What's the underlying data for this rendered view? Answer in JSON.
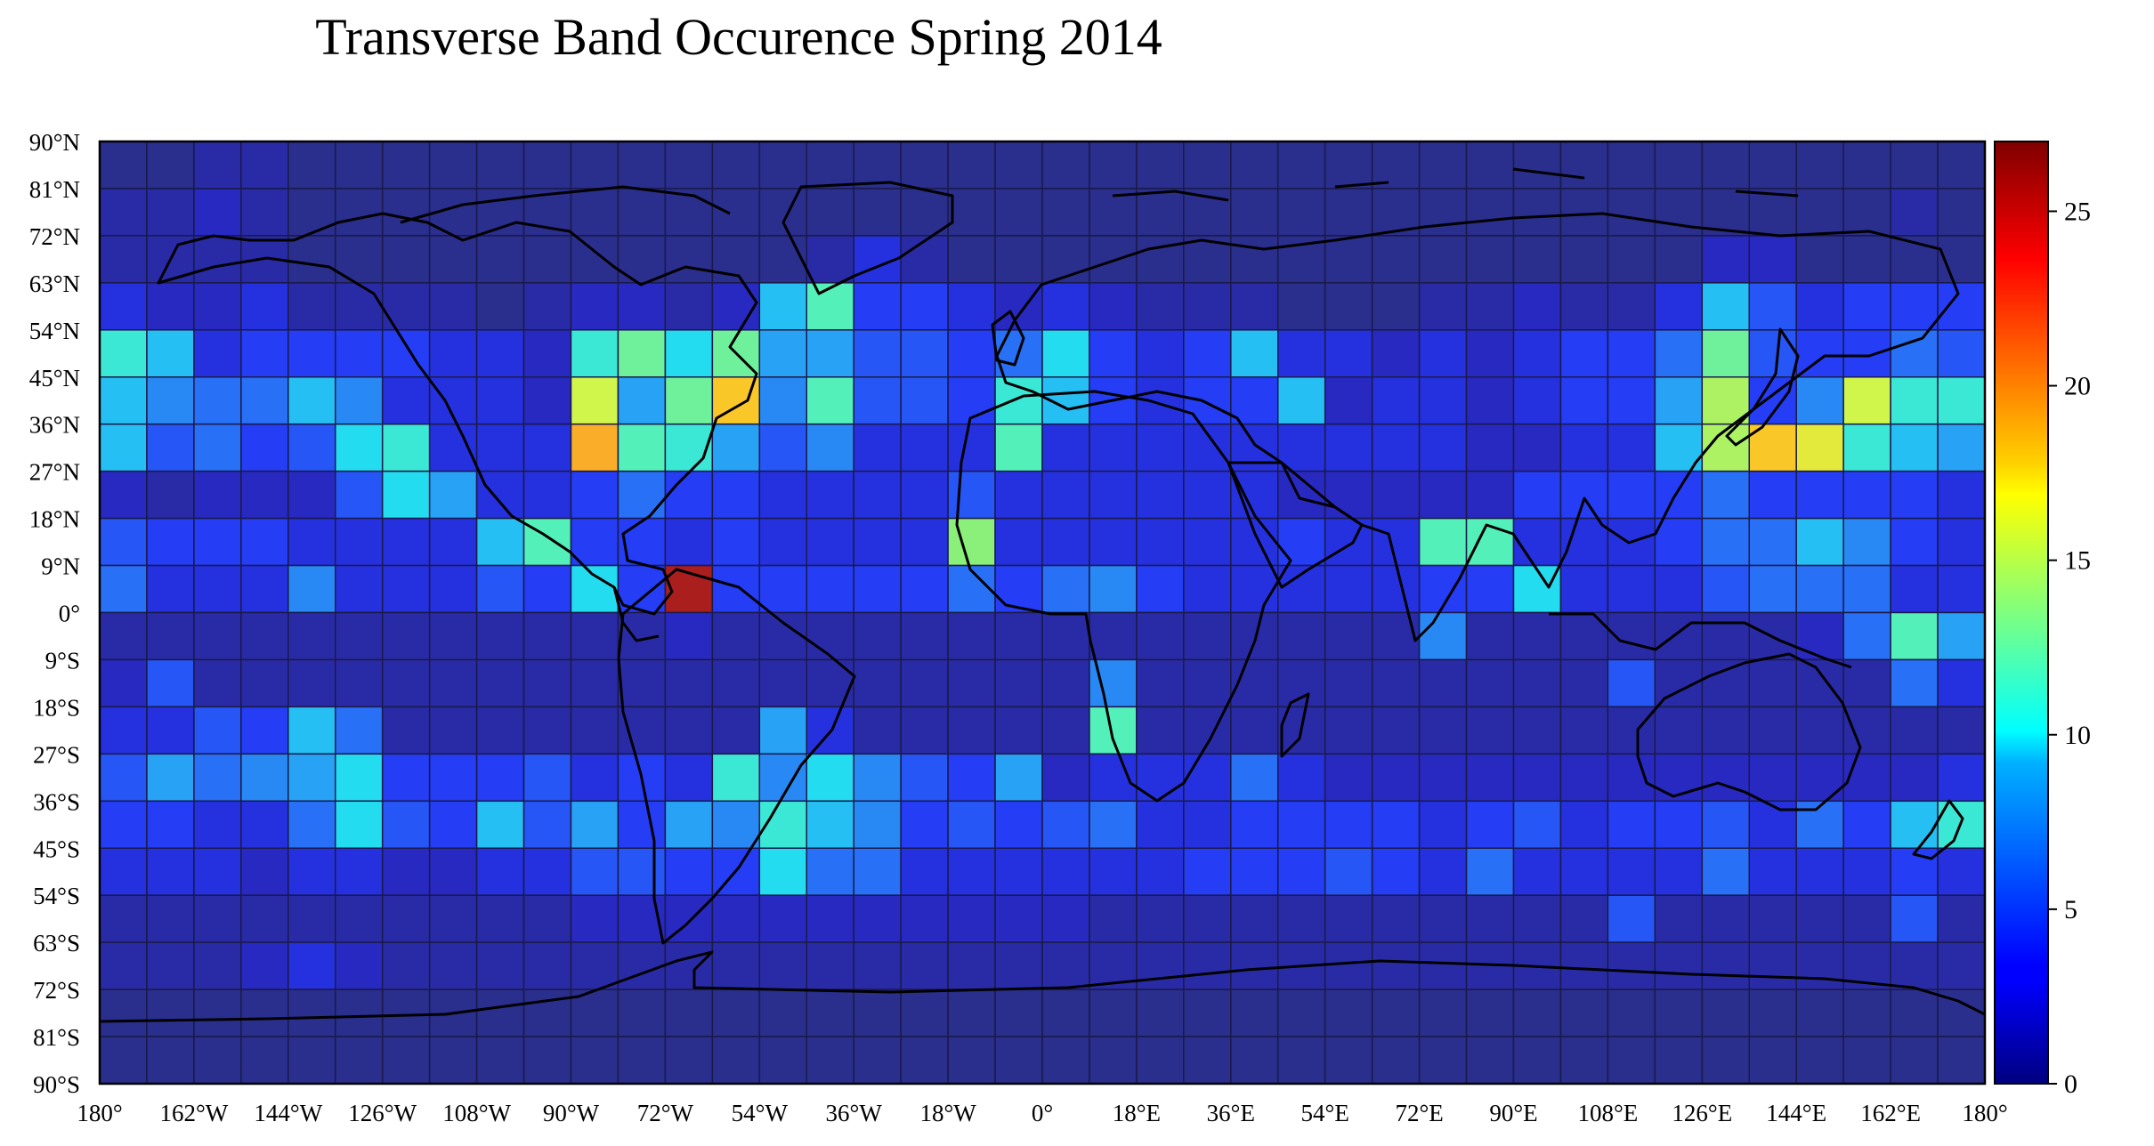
{
  "chart_data": {
    "type": "heatmap",
    "title": "Transverse Band Occurence Spring 2014",
    "xlabel": "",
    "ylabel": "",
    "projection": "equirectangular world map with coastlines",
    "x_range": [
      -180,
      180
    ],
    "y_range": [
      -90,
      90
    ],
    "grid": true,
    "colormap": "jet",
    "colorbar": {
      "range": [
        0,
        27
      ],
      "ticks": [
        "0",
        "5",
        "10",
        "15",
        "20",
        "25"
      ],
      "placement": "right"
    },
    "x_tick_labels": [
      "180°",
      "162°W",
      "144°W",
      "126°W",
      "108°W",
      "90°W",
      "72°W",
      "54°W",
      "36°W",
      "18°W",
      "0°",
      "18°E",
      "36°E",
      "54°E",
      "72°E",
      "90°E",
      "108°E",
      "126°E",
      "144°E",
      "162°E",
      "180°"
    ],
    "y_tick_labels": [
      "90°N",
      "81°N",
      "72°N",
      "63°N",
      "54°N",
      "45°N",
      "36°N",
      "27°N",
      "18°N",
      "9°N",
      "0°",
      "9°S",
      "18°S",
      "27°S",
      "36°S",
      "45°S",
      "54°S",
      "63°S",
      "72°S",
      "81°S",
      "90°S"
    ],
    "x_bin_edges": [
      -180,
      -171,
      -162,
      -153,
      -144,
      -135,
      -126,
      -117,
      -108,
      -99,
      -90,
      -81,
      -72,
      -63,
      -54,
      -45,
      -36,
      -27,
      -18,
      -9,
      0,
      9,
      18,
      27,
      36,
      45,
      54,
      63,
      72,
      81,
      90,
      99,
      108,
      117,
      126,
      135,
      144,
      153,
      162,
      171,
      180
    ],
    "y_bin_edges": [
      90,
      81,
      72,
      63,
      54,
      45,
      36,
      27,
      18,
      9,
      0,
      -9,
      -18,
      -27,
      -36,
      -45,
      -54,
      -63,
      -72,
      -81,
      -90
    ],
    "values": [
      [
        0,
        0,
        1,
        1,
        0,
        0,
        0,
        0,
        0,
        0,
        0,
        0,
        0,
        0,
        0,
        0,
        0,
        0,
        0,
        0,
        0,
        0,
        0,
        0,
        0,
        0,
        0,
        0,
        0,
        0,
        0,
        0,
        0,
        0,
        0,
        0,
        0,
        0,
        0,
        0
      ],
      [
        1,
        1,
        2,
        1,
        0,
        0,
        0,
        0,
        0,
        0,
        0,
        0,
        0,
        0,
        0,
        0,
        0,
        0,
        0,
        0,
        0,
        0,
        0,
        0,
        0,
        0,
        0,
        0,
        0,
        0,
        0,
        0,
        0,
        0,
        0,
        0,
        0,
        0,
        1,
        0
      ],
      [
        1,
        1,
        1,
        1,
        0,
        0,
        0,
        0,
        0,
        0,
        0,
        0,
        0,
        0,
        0,
        1,
        3,
        1,
        0,
        0,
        0,
        0,
        0,
        0,
        0,
        0,
        0,
        0,
        0,
        0,
        0,
        0,
        0,
        0,
        2,
        2,
        0,
        0,
        0,
        0
      ],
      [
        3,
        2,
        2,
        3,
        1,
        1,
        1,
        1,
        0,
        1,
        2,
        2,
        1,
        2,
        9,
        12,
        4,
        4,
        3,
        2,
        3,
        2,
        1,
        1,
        1,
        0,
        0,
        0,
        1,
        1,
        2,
        1,
        1,
        3,
        9,
        5,
        3,
        4,
        4,
        4
      ],
      [
        11,
        9,
        3,
        4,
        4,
        4,
        4,
        3,
        3,
        2,
        11,
        13,
        10,
        13,
        8,
        8,
        5,
        5,
        4,
        6,
        10,
        4,
        3,
        4,
        9,
        3,
        3,
        2,
        3,
        2,
        3,
        4,
        4,
        6,
        13,
        5,
        4,
        4,
        6,
        5
      ],
      [
        9,
        7,
        6,
        6,
        9,
        7,
        3,
        3,
        3,
        2,
        16,
        8,
        13,
        19,
        7,
        12,
        5,
        5,
        4,
        11,
        9,
        4,
        3,
        4,
        4,
        9,
        2,
        3,
        3,
        2,
        3,
        4,
        4,
        8,
        15,
        4,
        7,
        16,
        11,
        11
      ],
      [
        9,
        5,
        6,
        4,
        5,
        10,
        11,
        3,
        3,
        3,
        20,
        12,
        11,
        8,
        5,
        7,
        3,
        3,
        3,
        12,
        3,
        3,
        3,
        3,
        3,
        3,
        3,
        3,
        3,
        2,
        2,
        3,
        3,
        9,
        15,
        19,
        17,
        11,
        9,
        8
      ],
      [
        2,
        1,
        2,
        2,
        2,
        5,
        10,
        8,
        3,
        3,
        4,
        6,
        4,
        4,
        3,
        3,
        3,
        3,
        5,
        3,
        3,
        3,
        3,
        3,
        3,
        2,
        2,
        2,
        2,
        2,
        4,
        4,
        4,
        4,
        6,
        4,
        4,
        4,
        4,
        3
      ],
      [
        5,
        4,
        4,
        4,
        3,
        3,
        3,
        3,
        9,
        12,
        4,
        4,
        3,
        4,
        3,
        3,
        3,
        3,
        14,
        3,
        3,
        3,
        3,
        3,
        3,
        4,
        3,
        3,
        12,
        12,
        3,
        3,
        3,
        4,
        6,
        6,
        9,
        7,
        4,
        3
      ],
      [
        6,
        3,
        3,
        3,
        7,
        3,
        3,
        3,
        5,
        4,
        10,
        4,
        27,
        4,
        4,
        4,
        4,
        4,
        6,
        4,
        6,
        7,
        4,
        3,
        3,
        3,
        3,
        3,
        4,
        4,
        10,
        3,
        3,
        3,
        5,
        6,
        6,
        6,
        3,
        3
      ],
      [
        1,
        1,
        1,
        1,
        1,
        1,
        1,
        1,
        1,
        1,
        1,
        1,
        2,
        1,
        1,
        1,
        1,
        1,
        1,
        1,
        1,
        1,
        1,
        1,
        1,
        1,
        1,
        1,
        7,
        1,
        1,
        1,
        1,
        1,
        1,
        1,
        2,
        6,
        12,
        8
      ],
      [
        2,
        5,
        1,
        1,
        1,
        1,
        1,
        1,
        1,
        1,
        1,
        1,
        1,
        1,
        1,
        1,
        1,
        1,
        1,
        1,
        1,
        7,
        1,
        1,
        1,
        1,
        1,
        1,
        1,
        1,
        1,
        1,
        5,
        1,
        1,
        1,
        1,
        1,
        6,
        3
      ],
      [
        3,
        3,
        5,
        4,
        9,
        6,
        1,
        1,
        1,
        1,
        1,
        1,
        1,
        1,
        8,
        3,
        1,
        1,
        1,
        1,
        1,
        12,
        1,
        1,
        1,
        1,
        1,
        1,
        1,
        1,
        1,
        1,
        1,
        1,
        1,
        1,
        1,
        1,
        1,
        1
      ],
      [
        5,
        8,
        6,
        7,
        8,
        10,
        4,
        4,
        4,
        5,
        3,
        4,
        3,
        11,
        7,
        10,
        7,
        5,
        4,
        8,
        2,
        3,
        3,
        3,
        6,
        3,
        2,
        2,
        2,
        2,
        2,
        2,
        2,
        2,
        2,
        2,
        2,
        2,
        2,
        3
      ],
      [
        4,
        4,
        3,
        3,
        6,
        10,
        5,
        4,
        9,
        5,
        8,
        4,
        8,
        7,
        11,
        9,
        7,
        4,
        5,
        4,
        5,
        6,
        3,
        3,
        4,
        4,
        4,
        4,
        3,
        4,
        5,
        3,
        4,
        4,
        5,
        3,
        6,
        4,
        9,
        11
      ],
      [
        3,
        3,
        3,
        2,
        3,
        3,
        2,
        2,
        3,
        3,
        5,
        5,
        4,
        4,
        10,
        6,
        6,
        3,
        3,
        3,
        3,
        3,
        3,
        4,
        4,
        4,
        5,
        4,
        3,
        6,
        3,
        3,
        3,
        3,
        6,
        3,
        3,
        3,
        4,
        3
      ],
      [
        1,
        1,
        1,
        1,
        1,
        1,
        1,
        1,
        1,
        1,
        2,
        2,
        2,
        2,
        2,
        2,
        2,
        2,
        2,
        2,
        2,
        1,
        1,
        1,
        1,
        1,
        1,
        1,
        1,
        1,
        1,
        1,
        5,
        1,
        1,
        1,
        1,
        1,
        5,
        1
      ],
      [
        1,
        1,
        1,
        2,
        3,
        2,
        1,
        1,
        1,
        1,
        1,
        1,
        1,
        1,
        1,
        1,
        1,
        1,
        1,
        1,
        1,
        1,
        1,
        1,
        1,
        1,
        1,
        1,
        1,
        1,
        1,
        1,
        1,
        1,
        1,
        1,
        1,
        1,
        1,
        1
      ],
      [
        0,
        0,
        0,
        0,
        0,
        0,
        0,
        0,
        0,
        0,
        0,
        0,
        0,
        0,
        0,
        0,
        0,
        0,
        0,
        0,
        0,
        0,
        0,
        0,
        0,
        0,
        0,
        0,
        0,
        0,
        0,
        0,
        0,
        0,
        0,
        0,
        0,
        0,
        0,
        0
      ],
      [
        0,
        0,
        0,
        0,
        0,
        0,
        0,
        0,
        0,
        0,
        0,
        0,
        0,
        0,
        0,
        0,
        0,
        0,
        0,
        0,
        0,
        0,
        0,
        0,
        0,
        0,
        0,
        0,
        0,
        0,
        0,
        0,
        0,
        0,
        0,
        0,
        0,
        0,
        0,
        0
      ]
    ]
  }
}
